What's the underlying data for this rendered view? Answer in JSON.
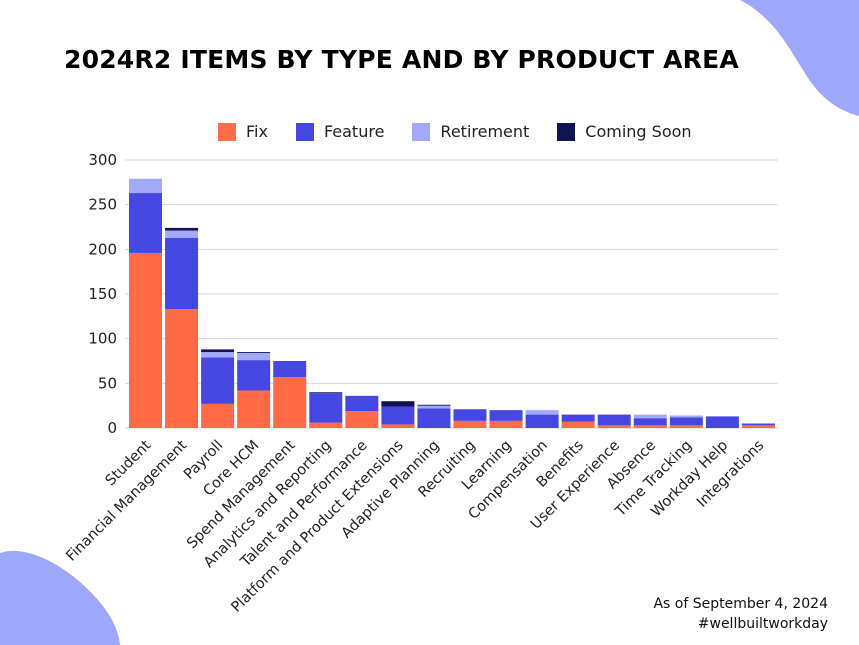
{
  "colors": {
    "accent": "#9ea8fb",
    "fix": "#ff6b47",
    "feature": "#4647e0",
    "retirement": "#a3a9f6",
    "coming_soon": "#101450",
    "grid": "#d6d6d6"
  },
  "footer": {
    "as_of": "As of September 4, 2024",
    "hashtag": "#wellbuiltworkday"
  },
  "chart_data": {
    "type": "bar",
    "stacked": true,
    "title": "2024R2 ITEMS BY TYPE AND BY PRODUCT AREA",
    "xlabel": "",
    "ylabel": "",
    "ylim": [
      0,
      300
    ],
    "yticks": [
      0,
      50,
      100,
      150,
      200,
      250,
      300
    ],
    "grid": true,
    "legend_position": "top",
    "categories": [
      "Student",
      "Financial Management",
      "Payroll",
      "Core HCM",
      "Spend Management",
      "Analytics and Reporting",
      "Talent and Performance",
      "Platform and Product Extensions",
      "Adaptive Planning",
      "Recruiting",
      "Learning",
      "Compensation",
      "Benefits",
      "User Experience",
      "Absence",
      "Time Tracking",
      "Workday Help",
      "Integrations"
    ],
    "series": [
      {
        "name": "Fix",
        "color": "#ff6b47",
        "values": [
          196,
          133,
          27,
          42,
          57,
          6,
          19,
          4,
          0,
          8,
          8,
          0,
          7,
          3,
          3,
          3,
          0,
          3
        ]
      },
      {
        "name": "Feature",
        "color": "#4647e0",
        "values": [
          67,
          80,
          52,
          34,
          18,
          33,
          17,
          20,
          22,
          13,
          12,
          15,
          8,
          12,
          8,
          9,
          13,
          2
        ]
      },
      {
        "name": "Retirement",
        "color": "#a3a9f6",
        "values": [
          16,
          8,
          6,
          8,
          0,
          0,
          0,
          0,
          3,
          0,
          0,
          5,
          0,
          0,
          4,
          2,
          0,
          0
        ]
      },
      {
        "name": "Coming Soon",
        "color": "#101450",
        "values": [
          0,
          3,
          3,
          1,
          0,
          1,
          0,
          6,
          1,
          0,
          0,
          0,
          0,
          0,
          0,
          0,
          0,
          0
        ]
      }
    ]
  }
}
